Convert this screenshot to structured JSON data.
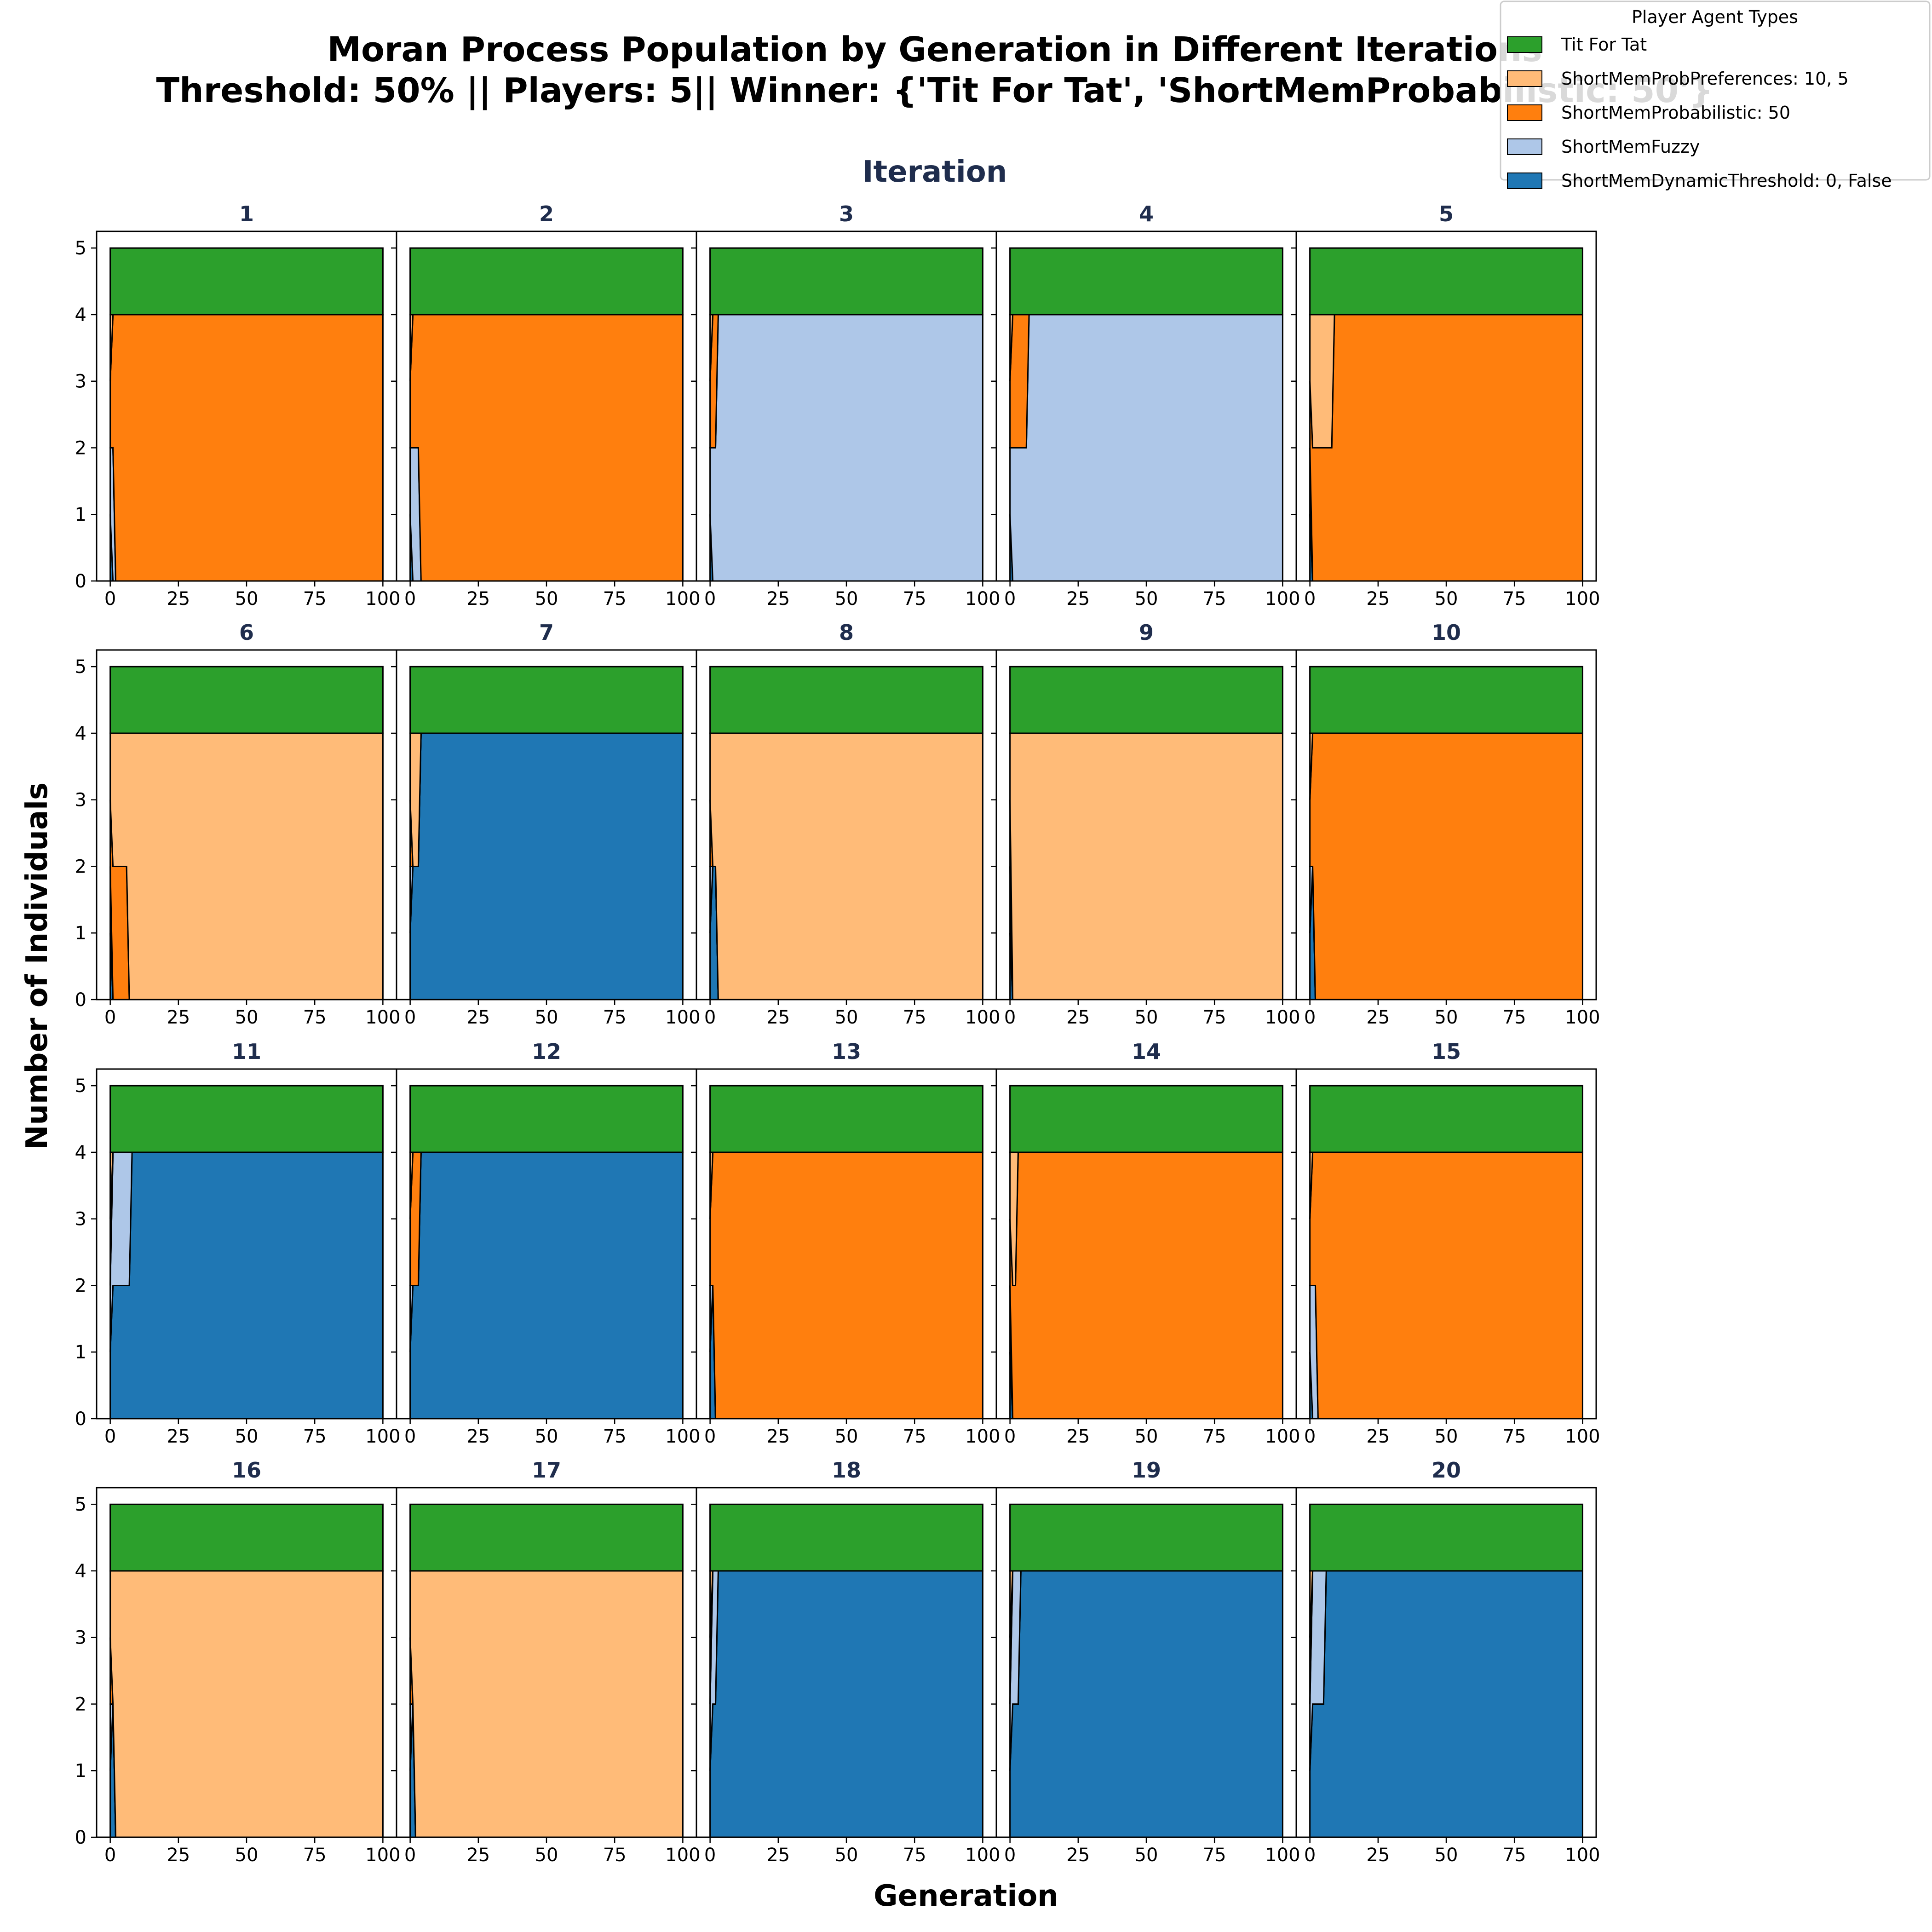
{
  "figure": {
    "title_line1": "Moran Process Population by Generation in Different Iterations",
    "title_line2": "Threshold: 50% || Players: 5|| Winner: {'Tit For Tat', 'ShortMemProbabilistic: 50'}",
    "supxlabel": "Generation",
    "supylabel": "Number of Individuals",
    "subplots_header": "Iteration"
  },
  "legend": {
    "title": "Player Agent Types",
    "placement": "top-right",
    "entries": [
      {
        "label": "Tit For Tat",
        "color": "#2ca02c"
      },
      {
        "label": "ShortMemProbPreferences: 10, 5",
        "color": "#ffbb78"
      },
      {
        "label": "ShortMemProbabilistic: 50",
        "color": "#ff7f0e"
      },
      {
        "label": "ShortMemFuzzy",
        "color": "#aec7e8"
      },
      {
        "label": "ShortMemDynamicThreshold: 0, False",
        "color": "#1f77b4"
      }
    ]
  },
  "chart_data": {
    "type": "area",
    "stacked": true,
    "grid": false,
    "xlim": [
      0,
      100
    ],
    "ylim": [
      0,
      5
    ],
    "xticks": [
      0,
      25,
      50,
      75,
      100
    ],
    "yticks": [
      0,
      1,
      2,
      3,
      4,
      5
    ],
    "layout": "4x5",
    "series_order": [
      "ShortMemDynamicThreshold: 0, False",
      "ShortMemFuzzy",
      "ShortMemProbabilistic: 50",
      "ShortMemProbPreferences: 10, 5",
      "Tit For Tat"
    ],
    "series_colors": {
      "Tit For Tat": "#2ca02c",
      "ShortMemProbPreferences: 10, 5": "#ffbb78",
      "ShortMemProbabilistic: 50": "#ff7f0e",
      "ShortMemFuzzy": "#aec7e8",
      "ShortMemDynamicThreshold: 0, False": "#1f77b4"
    },
    "iterations": [
      {
        "label": "1",
        "points": [
          {
            "x": 0,
            "v": [
              1,
              1,
              1,
              1,
              1
            ]
          },
          {
            "x": 1,
            "v": [
              0,
              2,
              2,
              0,
              1
            ]
          },
          {
            "x": 2,
            "v": [
              0,
              0,
              4,
              0,
              1
            ]
          },
          {
            "x": 100,
            "v": [
              0,
              0,
              4,
              0,
              1
            ]
          }
        ]
      },
      {
        "label": "2",
        "points": [
          {
            "x": 0,
            "v": [
              1,
              1,
              1,
              1,
              1
            ]
          },
          {
            "x": 1,
            "v": [
              0,
              2,
              2,
              0,
              1
            ]
          },
          {
            "x": 3,
            "v": [
              0,
              2,
              2,
              0,
              1
            ]
          },
          {
            "x": 4,
            "v": [
              0,
              0,
              4,
              0,
              1
            ]
          },
          {
            "x": 100,
            "v": [
              0,
              0,
              4,
              0,
              1
            ]
          }
        ]
      },
      {
        "label": "3",
        "points": [
          {
            "x": 0,
            "v": [
              1,
              1,
              1,
              1,
              1
            ]
          },
          {
            "x": 1,
            "v": [
              0,
              2,
              2,
              0,
              1
            ]
          },
          {
            "x": 2,
            "v": [
              0,
              2,
              2,
              0,
              1
            ]
          },
          {
            "x": 3,
            "v": [
              0,
              4,
              0,
              0,
              1
            ]
          },
          {
            "x": 100,
            "v": [
              0,
              4,
              0,
              0,
              1
            ]
          }
        ]
      },
      {
        "label": "4",
        "points": [
          {
            "x": 0,
            "v": [
              1,
              1,
              1,
              1,
              1
            ]
          },
          {
            "x": 1,
            "v": [
              0,
              2,
              2,
              0,
              1
            ]
          },
          {
            "x": 6,
            "v": [
              0,
              2,
              2,
              0,
              1
            ]
          },
          {
            "x": 7,
            "v": [
              0,
              4,
              0,
              0,
              1
            ]
          },
          {
            "x": 100,
            "v": [
              0,
              4,
              0,
              0,
              1
            ]
          }
        ]
      },
      {
        "label": "5",
        "points": [
          {
            "x": 0,
            "v": [
              1,
              1,
              1,
              1,
              1
            ]
          },
          {
            "x": 1,
            "v": [
              0,
              0,
              2,
              2,
              1
            ]
          },
          {
            "x": 8,
            "v": [
              0,
              0,
              2,
              2,
              1
            ]
          },
          {
            "x": 9,
            "v": [
              0,
              0,
              4,
              0,
              1
            ]
          },
          {
            "x": 100,
            "v": [
              0,
              0,
              4,
              0,
              1
            ]
          }
        ]
      },
      {
        "label": "6",
        "points": [
          {
            "x": 0,
            "v": [
              1,
              1,
              1,
              1,
              1
            ]
          },
          {
            "x": 1,
            "v": [
              0,
              0,
              2,
              2,
              1
            ]
          },
          {
            "x": 6,
            "v": [
              0,
              0,
              2,
              2,
              1
            ]
          },
          {
            "x": 7,
            "v": [
              0,
              0,
              0,
              4,
              1
            ]
          },
          {
            "x": 100,
            "v": [
              0,
              0,
              0,
              4,
              1
            ]
          }
        ]
      },
      {
        "label": "7",
        "points": [
          {
            "x": 0,
            "v": [
              1,
              1,
              1,
              1,
              1
            ]
          },
          {
            "x": 1,
            "v": [
              2,
              0,
              0,
              2,
              1
            ]
          },
          {
            "x": 3,
            "v": [
              2,
              0,
              0,
              2,
              1
            ]
          },
          {
            "x": 4,
            "v": [
              4,
              0,
              0,
              0,
              1
            ]
          },
          {
            "x": 100,
            "v": [
              4,
              0,
              0,
              0,
              1
            ]
          }
        ]
      },
      {
        "label": "8",
        "points": [
          {
            "x": 0,
            "v": [
              1,
              1,
              1,
              1,
              1
            ]
          },
          {
            "x": 1,
            "v": [
              2,
              0,
              0,
              2,
              1
            ]
          },
          {
            "x": 2,
            "v": [
              2,
              0,
              0,
              2,
              1
            ]
          },
          {
            "x": 3,
            "v": [
              0,
              0,
              0,
              4,
              1
            ]
          },
          {
            "x": 100,
            "v": [
              0,
              0,
              0,
              4,
              1
            ]
          }
        ]
      },
      {
        "label": "9",
        "points": [
          {
            "x": 0,
            "v": [
              1,
              1,
              1,
              1,
              1
            ]
          },
          {
            "x": 1,
            "v": [
              0,
              0,
              0,
              4,
              1
            ]
          },
          {
            "x": 100,
            "v": [
              0,
              0,
              0,
              4,
              1
            ]
          }
        ]
      },
      {
        "label": "10",
        "points": [
          {
            "x": 0,
            "v": [
              1,
              1,
              1,
              1,
              1
            ]
          },
          {
            "x": 1,
            "v": [
              2,
              0,
              2,
              0,
              1
            ]
          },
          {
            "x": 2,
            "v": [
              0,
              0,
              4,
              0,
              1
            ]
          },
          {
            "x": 100,
            "v": [
              0,
              0,
              4,
              0,
              1
            ]
          }
        ]
      },
      {
        "label": "11",
        "points": [
          {
            "x": 0,
            "v": [
              1,
              1,
              1,
              1,
              1
            ]
          },
          {
            "x": 1,
            "v": [
              2,
              2,
              0,
              0,
              1
            ]
          },
          {
            "x": 7,
            "v": [
              2,
              2,
              0,
              0,
              1
            ]
          },
          {
            "x": 8,
            "v": [
              4,
              0,
              0,
              0,
              1
            ]
          },
          {
            "x": 100,
            "v": [
              4,
              0,
              0,
              0,
              1
            ]
          }
        ]
      },
      {
        "label": "12",
        "points": [
          {
            "x": 0,
            "v": [
              1,
              1,
              1,
              1,
              1
            ]
          },
          {
            "x": 1,
            "v": [
              2,
              0,
              2,
              0,
              1
            ]
          },
          {
            "x": 3,
            "v": [
              2,
              0,
              2,
              0,
              1
            ]
          },
          {
            "x": 4,
            "v": [
              4,
              0,
              0,
              0,
              1
            ]
          },
          {
            "x": 100,
            "v": [
              4,
              0,
              0,
              0,
              1
            ]
          }
        ]
      },
      {
        "label": "13",
        "points": [
          {
            "x": 0,
            "v": [
              1,
              1,
              1,
              1,
              1
            ]
          },
          {
            "x": 1,
            "v": [
              2,
              0,
              2,
              0,
              1
            ]
          },
          {
            "x": 2,
            "v": [
              0,
              0,
              4,
              0,
              1
            ]
          },
          {
            "x": 100,
            "v": [
              0,
              0,
              4,
              0,
              1
            ]
          }
        ]
      },
      {
        "label": "14",
        "points": [
          {
            "x": 0,
            "v": [
              1,
              1,
              1,
              1,
              1
            ]
          },
          {
            "x": 1,
            "v": [
              0,
              0,
              2,
              2,
              1
            ]
          },
          {
            "x": 2,
            "v": [
              0,
              0,
              2,
              2,
              1
            ]
          },
          {
            "x": 3,
            "v": [
              0,
              0,
              4,
              0,
              1
            ]
          },
          {
            "x": 100,
            "v": [
              0,
              0,
              4,
              0,
              1
            ]
          }
        ]
      },
      {
        "label": "15",
        "points": [
          {
            "x": 0,
            "v": [
              1,
              1,
              1,
              1,
              1
            ]
          },
          {
            "x": 1,
            "v": [
              0,
              2,
              2,
              0,
              1
            ]
          },
          {
            "x": 2,
            "v": [
              0,
              2,
              2,
              0,
              1
            ]
          },
          {
            "x": 3,
            "v": [
              0,
              0,
              4,
              0,
              1
            ]
          },
          {
            "x": 100,
            "v": [
              0,
              0,
              4,
              0,
              1
            ]
          }
        ]
      },
      {
        "label": "16",
        "points": [
          {
            "x": 0,
            "v": [
              1,
              1,
              1,
              1,
              1
            ]
          },
          {
            "x": 1,
            "v": [
              2,
              0,
              0,
              2,
              1
            ]
          },
          {
            "x": 2,
            "v": [
              0,
              0,
              0,
              4,
              1
            ]
          },
          {
            "x": 100,
            "v": [
              0,
              0,
              0,
              4,
              1
            ]
          }
        ]
      },
      {
        "label": "17",
        "points": [
          {
            "x": 0,
            "v": [
              1,
              1,
              1,
              1,
              1
            ]
          },
          {
            "x": 1,
            "v": [
              2,
              0,
              0,
              2,
              1
            ]
          },
          {
            "x": 2,
            "v": [
              0,
              0,
              0,
              4,
              1
            ]
          },
          {
            "x": 100,
            "v": [
              0,
              0,
              0,
              4,
              1
            ]
          }
        ]
      },
      {
        "label": "18",
        "points": [
          {
            "x": 0,
            "v": [
              1,
              1,
              1,
              1,
              1
            ]
          },
          {
            "x": 1,
            "v": [
              2,
              2,
              0,
              0,
              1
            ]
          },
          {
            "x": 2,
            "v": [
              2,
              2,
              0,
              0,
              1
            ]
          },
          {
            "x": 3,
            "v": [
              4,
              0,
              0,
              0,
              1
            ]
          },
          {
            "x": 100,
            "v": [
              4,
              0,
              0,
              0,
              1
            ]
          }
        ]
      },
      {
        "label": "19",
        "points": [
          {
            "x": 0,
            "v": [
              1,
              1,
              1,
              1,
              1
            ]
          },
          {
            "x": 1,
            "v": [
              2,
              2,
              0,
              0,
              1
            ]
          },
          {
            "x": 3,
            "v": [
              2,
              2,
              0,
              0,
              1
            ]
          },
          {
            "x": 4,
            "v": [
              4,
              0,
              0,
              0,
              1
            ]
          },
          {
            "x": 100,
            "v": [
              4,
              0,
              0,
              0,
              1
            ]
          }
        ]
      },
      {
        "label": "20",
        "points": [
          {
            "x": 0,
            "v": [
              1,
              1,
              1,
              1,
              1
            ]
          },
          {
            "x": 1,
            "v": [
              2,
              2,
              0,
              0,
              1
            ]
          },
          {
            "x": 5,
            "v": [
              2,
              2,
              0,
              0,
              1
            ]
          },
          {
            "x": 6,
            "v": [
              4,
              0,
              0,
              0,
              1
            ]
          },
          {
            "x": 100,
            "v": [
              4,
              0,
              0,
              0,
              1
            ]
          }
        ]
      }
    ]
  }
}
